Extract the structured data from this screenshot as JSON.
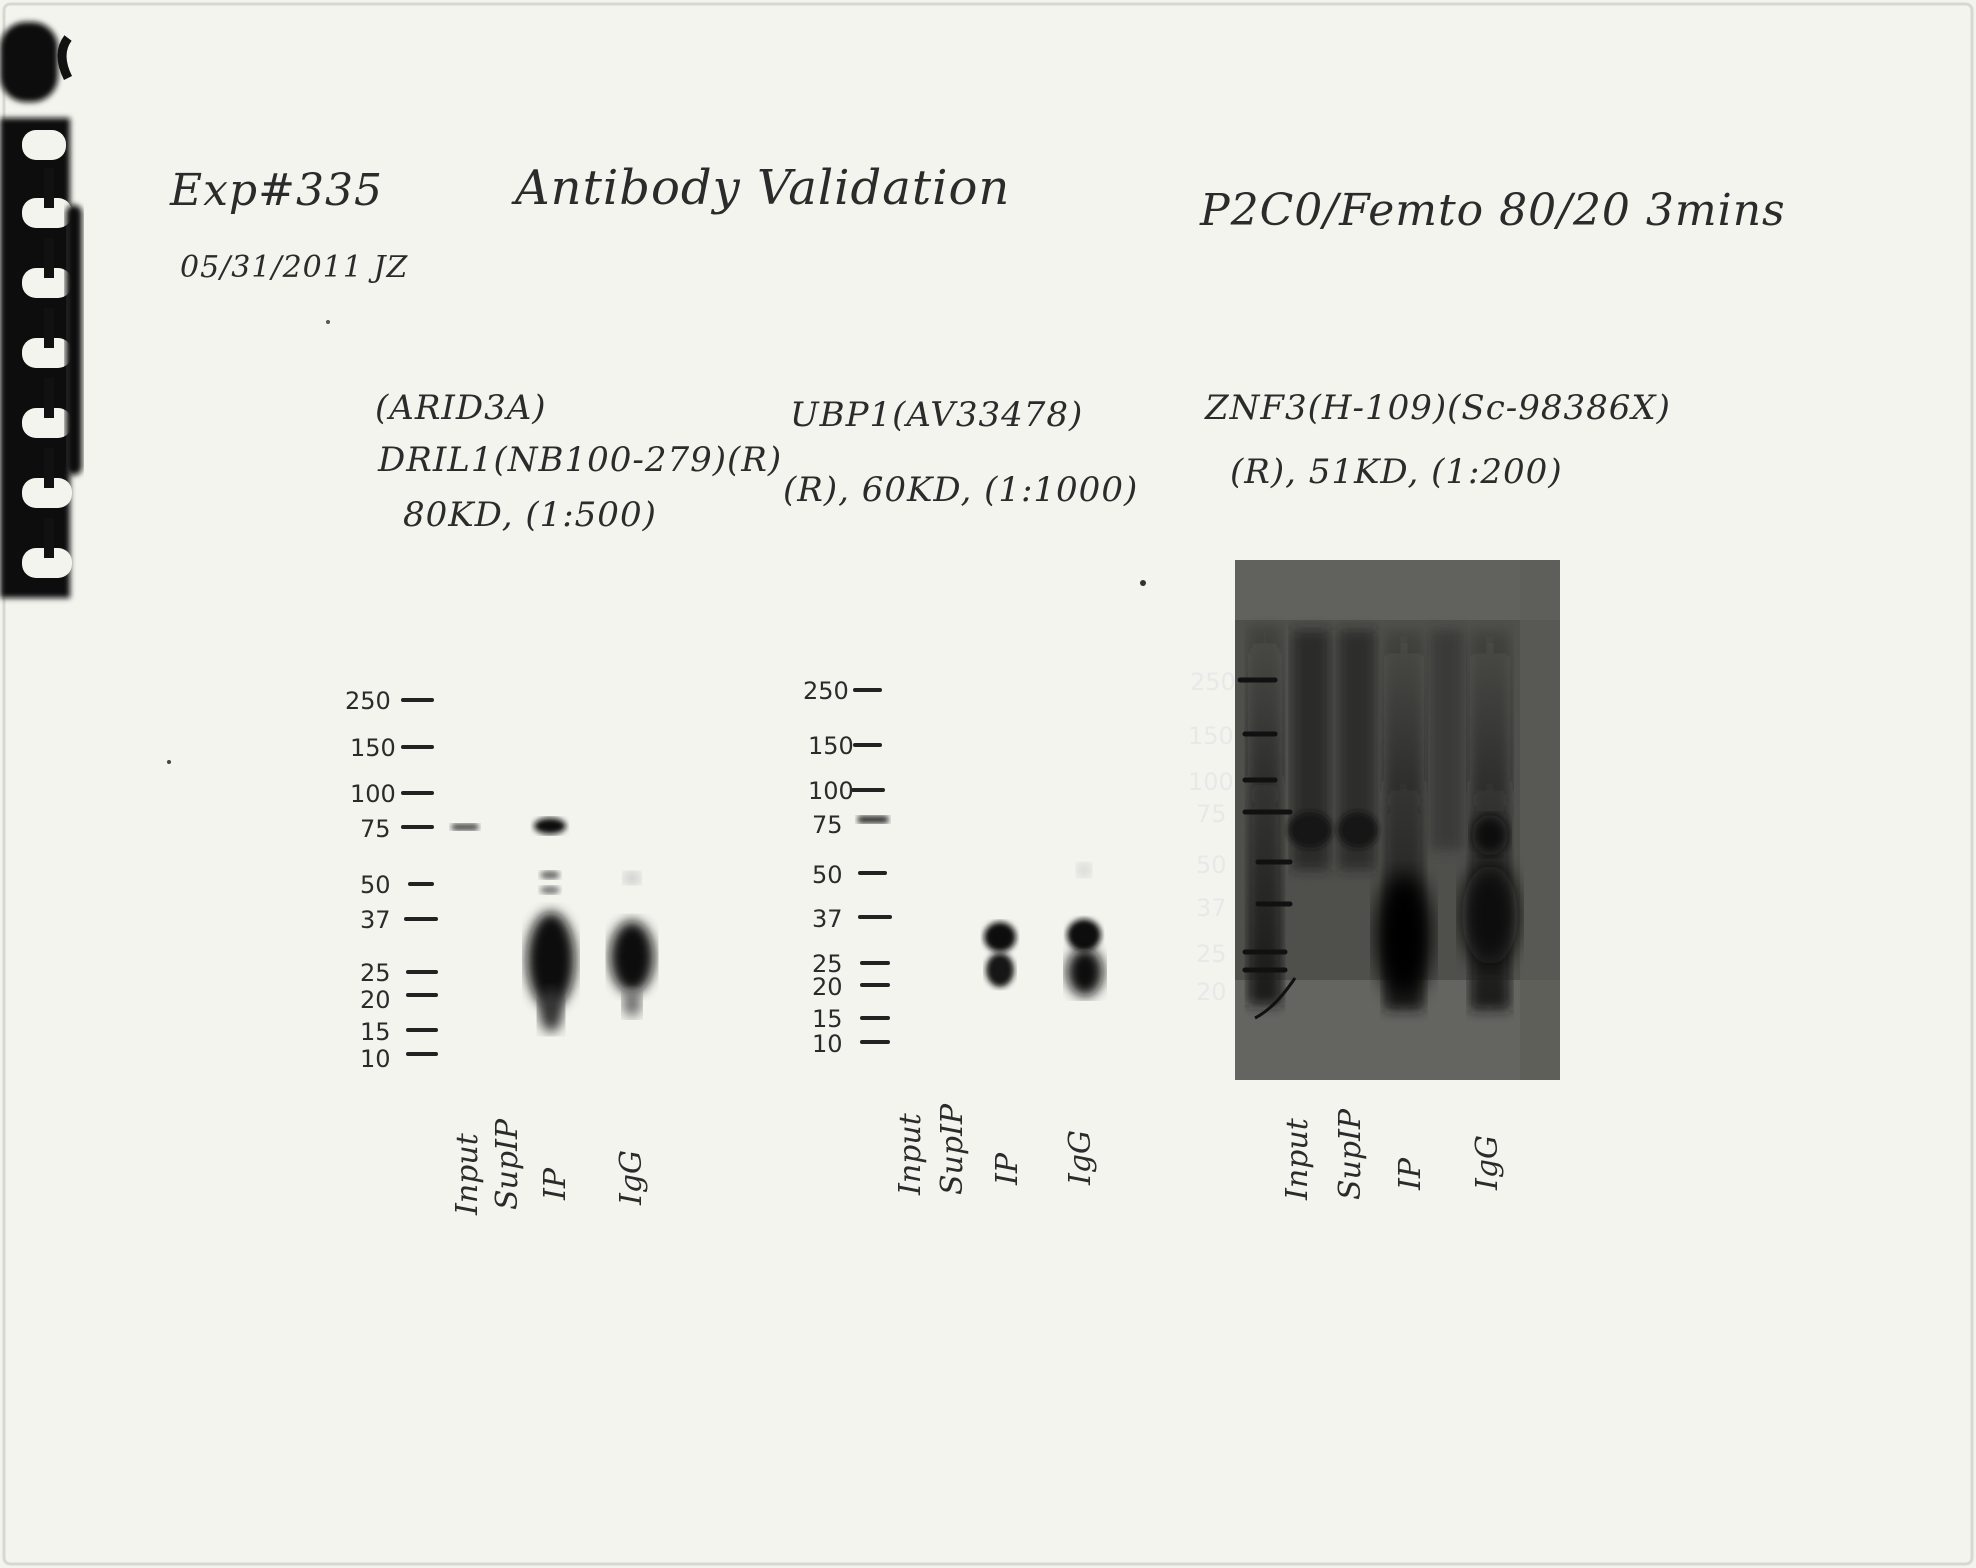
{
  "header": {
    "experiment": "Exp#335",
    "date_initials": "05/31/2011 JZ",
    "title": "Antibody Validation",
    "detection": "P2C0/Femto 80/20 3mins"
  },
  "blots": [
    {
      "antibody_lines": [
        "(ARID3A)",
        "DRIL1(NB100-279)(R)",
        "80KD, (1:500)"
      ],
      "markers": [
        "250",
        "150",
        "100",
        "75",
        "50",
        "37",
        "25",
        "20",
        "15",
        "10"
      ],
      "lanes": [
        "Input",
        "SupIP",
        "IP",
        "IgG"
      ]
    },
    {
      "antibody_lines": [
        "UBP1(AV33478)",
        "(R), 60KD, (1:1000)"
      ],
      "markers": [
        "250",
        "150",
        "100",
        "75",
        "50",
        "37",
        "25",
        "20",
        "15",
        "10"
      ],
      "lanes": [
        "Input",
        "SupIP",
        "IP",
        "IgG"
      ]
    },
    {
      "antibody_lines": [
        "ZNF3(H-109)(Sc-98386X)",
        "(R), 51KD, (1:200)"
      ],
      "markers": [
        "250",
        "150",
        "100",
        "75",
        "50",
        "37",
        "25",
        "20"
      ],
      "lanes": [
        "Input",
        "SupIP",
        "IP",
        "IgG"
      ]
    }
  ],
  "colors": {
    "paper": "#f3f4ee",
    "ink": "#2b2b2b",
    "band": "#101010",
    "dark_blot_bg": "#4a4a46"
  }
}
